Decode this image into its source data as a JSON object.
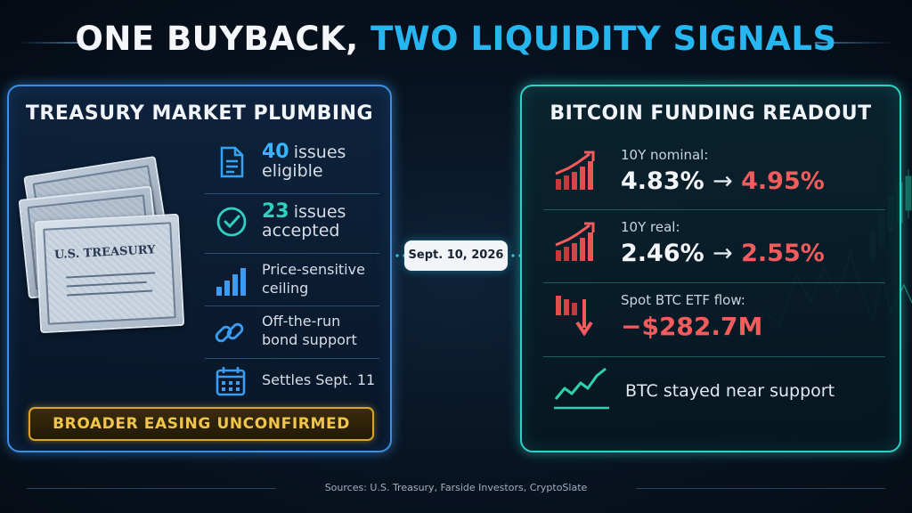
{
  "title": {
    "part1": "ONE BUYBACK, ",
    "part2": "TWO LIQUIDITY SIGNALS"
  },
  "colors": {
    "accent_blue": "#27b7f0",
    "panel_left_border": "#3c8fe0",
    "panel_right_border": "#2fd1c6",
    "negative_red": "#f25c5c",
    "badge_gold": "#d8a528"
  },
  "left_panel": {
    "title": "TREASURY MARKET PLUMBING",
    "certificate_label": "U.S. TREASURY",
    "items": [
      {
        "icon": "document-icon",
        "number": "40",
        "text_a": "issues",
        "text_b": "eligible"
      },
      {
        "icon": "check-circle-icon",
        "number": "23",
        "text_a": "issues",
        "text_b": "accepted"
      },
      {
        "icon": "bar-chart-icon",
        "text_a": "Price-sensitive",
        "text_b": "ceiling"
      },
      {
        "icon": "link-icon",
        "text_a": "Off-the-run",
        "text_b": "bond support"
      },
      {
        "icon": "calendar-icon",
        "text_a": "Settles Sept. 11"
      }
    ],
    "badge": "BROADER EASING UNCONFIRMED"
  },
  "date_label": "Sept. 10, 2026",
  "right_panel": {
    "title": "BITCOIN FUNDING READOUT",
    "rows": [
      {
        "icon": "rising-bars-icon",
        "label": "10Y nominal:",
        "from": "4.83%",
        "arrow": "→",
        "to": "4.95%"
      },
      {
        "icon": "rising-bars-icon",
        "label": "10Y real:",
        "from": "2.46%",
        "arrow": "→",
        "to": "2.55%"
      },
      {
        "icon": "falling-bars-icon",
        "label": "Spot BTC ETF flow:",
        "value": "−$282.7M"
      },
      {
        "icon": "line-chart-icon",
        "text": "BTC stayed near support"
      }
    ]
  },
  "sources": "Sources: U.S. Treasury, Farside Investors, CryptoSlate"
}
